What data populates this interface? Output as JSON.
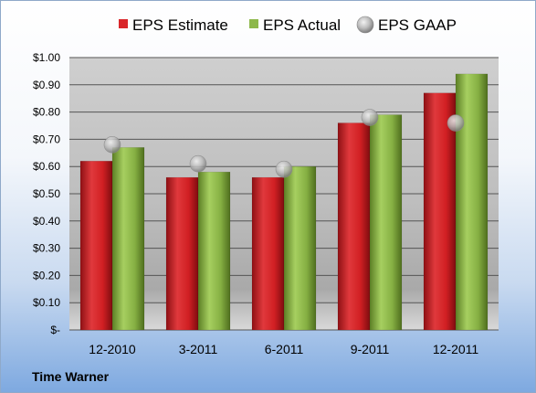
{
  "chart_data": {
    "type": "bar",
    "categories": [
      "12-2010",
      "3-2011",
      "6-2011",
      "9-2011",
      "12-2011"
    ],
    "series": [
      {
        "name": "EPS Estimate",
        "kind": "bar",
        "color": "#d9262a",
        "values": [
          0.62,
          0.56,
          0.56,
          0.76,
          0.87
        ]
      },
      {
        "name": "EPS Actual",
        "kind": "bar",
        "color": "#8db84a",
        "values": [
          0.67,
          0.58,
          0.6,
          0.79,
          0.94
        ]
      },
      {
        "name": "EPS GAAP",
        "kind": "marker",
        "color": "#b7b7b7",
        "values": [
          0.68,
          0.61,
          0.59,
          0.78,
          0.76
        ]
      }
    ],
    "ylim": [
      0,
      1.0
    ],
    "yticks": [
      0,
      0.1,
      0.2,
      0.3,
      0.4,
      0.5,
      0.6,
      0.7,
      0.8,
      0.9,
      1.0
    ],
    "ytick_labels": [
      "$-",
      "$0.10",
      "$0.20",
      "$0.30",
      "$0.40",
      "$0.50",
      "$0.60",
      "$0.70",
      "$0.80",
      "$0.90",
      "$1.00"
    ],
    "grid": true,
    "legend_position": "top"
  },
  "footer": {
    "company": "Time Warner"
  }
}
